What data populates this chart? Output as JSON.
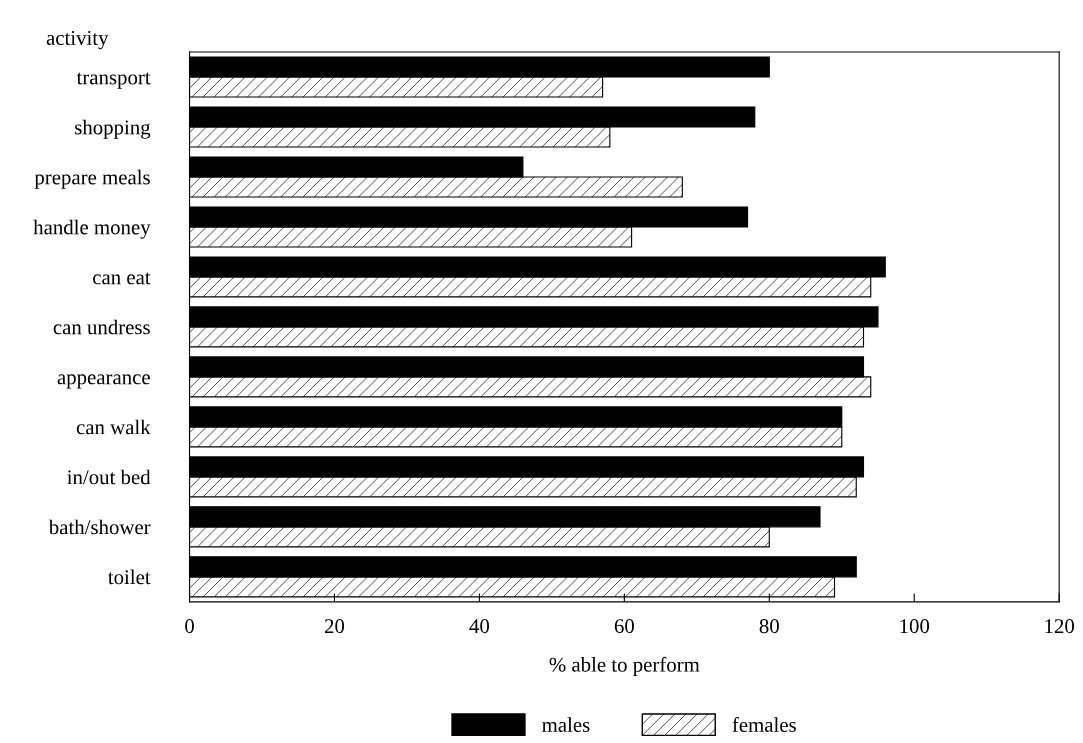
{
  "chart_data": {
    "type": "bar",
    "orientation": "horizontal",
    "xlabel": "% able to perform",
    "ylabel": "activity",
    "categories": [
      "transport",
      "shopping",
      "prepare meals",
      "handle money",
      "can eat",
      "can undress",
      "appearance",
      "can walk",
      "in/out bed",
      "bath/shower",
      "toilet"
    ],
    "series": [
      {
        "name": "males",
        "color": "#000000",
        "values": [
          80,
          78,
          46,
          77,
          96,
          95,
          93,
          90,
          93,
          87,
          92
        ]
      },
      {
        "name": "females",
        "color": "#000000",
        "values": [
          57,
          58,
          68,
          61,
          94,
          93,
          94,
          90,
          92,
          80,
          89
        ]
      }
    ],
    "xlim": [
      0,
      120
    ],
    "xticks": [
      0,
      20,
      40,
      60,
      80,
      100,
      120
    ],
    "grid": false,
    "legend": "bottom"
  }
}
